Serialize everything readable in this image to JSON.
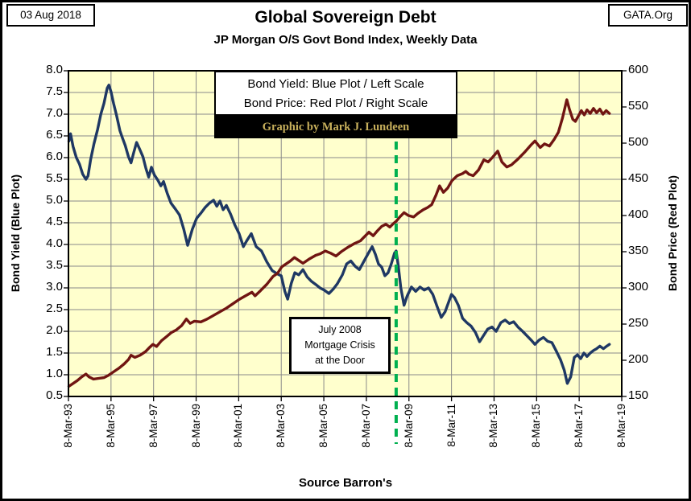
{
  "header": {
    "date_box": "03 Aug 2018",
    "org_box": "GATA.Org",
    "title": "Global Sovereign Debt",
    "subtitle": "JP Morgan O/S Govt Bond Index, Weekly Data"
  },
  "legend": {
    "line1": "Bond Yield: Blue Plot / Left Scale",
    "line2": "Bond Price: Red Plot / Right Scale",
    "credit": "Graphic by Mark J. Lundeen"
  },
  "annotation": {
    "line1": "July 2008",
    "line2": "Mortgage Crisis",
    "line3": "at the Door"
  },
  "footer": {
    "source": "Source Barron's"
  },
  "chart_data": {
    "type": "line",
    "title": "Global Sovereign Debt",
    "subtitle": "JP Morgan O/S Govt Bond Index, Weekly Data",
    "plot_bg": "#FFFFCD",
    "grid": true,
    "grid_color": "#8A8A8A",
    "x_axis": {
      "tick_labels": [
        "8-Mar-93",
        "8-Mar-95",
        "8-Mar-97",
        "8-Mar-99",
        "8-Mar-01",
        "8-Mar-03",
        "8-Mar-05",
        "8-Mar-07",
        "8-Mar-09",
        "8-Mar-11",
        "8-Mar-13",
        "8-Mar-15",
        "8-Mar-17",
        "8-Mar-19"
      ],
      "range_years": [
        1993.18,
        2019.18
      ]
    },
    "left_axis": {
      "label": "Bond Yield  (Blue Plot)",
      "ticks": [
        "8.0",
        "7.5",
        "7.0",
        "6.5",
        "6.0",
        "5.5",
        "5.0",
        "4.5",
        "4.0",
        "3.5",
        "3.0",
        "2.5",
        "2.0",
        "1.5",
        "1.0",
        "0.5"
      ],
      "range": [
        0.5,
        8.0
      ]
    },
    "right_axis": {
      "label": "Bond Price  (Red Plot)",
      "ticks": [
        "600",
        "550",
        "500",
        "450",
        "400",
        "350",
        "300",
        "250",
        "200",
        "150"
      ],
      "range": [
        150,
        600
      ]
    },
    "event_line": {
      "year": 2008.58,
      "color": "#00B050",
      "style": "dashed",
      "label": "July 2008 Mortgage Crisis at the Door"
    },
    "series": [
      {
        "name": "Bond Yield",
        "axis": "left",
        "color": "#1F3864",
        "points": [
          [
            1993.2,
            6.38
          ],
          [
            1993.28,
            6.55
          ],
          [
            1993.4,
            6.25
          ],
          [
            1993.55,
            6.0
          ],
          [
            1993.7,
            5.85
          ],
          [
            1993.85,
            5.62
          ],
          [
            1994.0,
            5.5
          ],
          [
            1994.1,
            5.58
          ],
          [
            1994.22,
            5.95
          ],
          [
            1994.38,
            6.32
          ],
          [
            1994.55,
            6.65
          ],
          [
            1994.7,
            7.0
          ],
          [
            1994.85,
            7.25
          ],
          [
            1995.0,
            7.6
          ],
          [
            1995.08,
            7.67
          ],
          [
            1995.18,
            7.52
          ],
          [
            1995.3,
            7.25
          ],
          [
            1995.45,
            6.95
          ],
          [
            1995.6,
            6.62
          ],
          [
            1995.72,
            6.45
          ],
          [
            1995.85,
            6.28
          ],
          [
            1996.0,
            6.02
          ],
          [
            1996.12,
            5.88
          ],
          [
            1996.25,
            6.12
          ],
          [
            1996.38,
            6.35
          ],
          [
            1996.52,
            6.2
          ],
          [
            1996.68,
            6.02
          ],
          [
            1996.82,
            5.75
          ],
          [
            1996.95,
            5.55
          ],
          [
            1997.08,
            5.78
          ],
          [
            1997.22,
            5.6
          ],
          [
            1997.38,
            5.48
          ],
          [
            1997.52,
            5.35
          ],
          [
            1997.65,
            5.45
          ],
          [
            1997.82,
            5.18
          ],
          [
            1998.0,
            4.95
          ],
          [
            1998.2,
            4.82
          ],
          [
            1998.4,
            4.68
          ],
          [
            1998.6,
            4.35
          ],
          [
            1998.78,
            3.98
          ],
          [
            1999.0,
            4.35
          ],
          [
            1999.2,
            4.6
          ],
          [
            1999.4,
            4.72
          ],
          [
            1999.6,
            4.85
          ],
          [
            1999.8,
            4.95
          ],
          [
            2000.0,
            5.02
          ],
          [
            2000.15,
            4.88
          ],
          [
            2000.3,
            5.0
          ],
          [
            2000.45,
            4.8
          ],
          [
            2000.6,
            4.9
          ],
          [
            2000.8,
            4.7
          ],
          [
            2001.0,
            4.45
          ],
          [
            2001.2,
            4.25
          ],
          [
            2001.4,
            3.95
          ],
          [
            2001.55,
            4.08
          ],
          [
            2001.77,
            4.25
          ],
          [
            2002.0,
            3.95
          ],
          [
            2002.25,
            3.85
          ],
          [
            2002.5,
            3.6
          ],
          [
            2002.75,
            3.4
          ],
          [
            2003.0,
            3.32
          ],
          [
            2003.18,
            3.28
          ],
          [
            2003.35,
            2.92
          ],
          [
            2003.48,
            2.74
          ],
          [
            2003.65,
            3.1
          ],
          [
            2003.82,
            3.35
          ],
          [
            2004.0,
            3.3
          ],
          [
            2004.2,
            3.42
          ],
          [
            2004.4,
            3.25
          ],
          [
            2004.6,
            3.15
          ],
          [
            2004.8,
            3.08
          ],
          [
            2005.0,
            3.0
          ],
          [
            2005.2,
            2.95
          ],
          [
            2005.42,
            2.87
          ],
          [
            2005.62,
            2.97
          ],
          [
            2005.82,
            3.1
          ],
          [
            2006.05,
            3.3
          ],
          [
            2006.25,
            3.55
          ],
          [
            2006.45,
            3.62
          ],
          [
            2006.65,
            3.5
          ],
          [
            2006.85,
            3.42
          ],
          [
            2007.05,
            3.6
          ],
          [
            2007.25,
            3.78
          ],
          [
            2007.45,
            3.95
          ],
          [
            2007.6,
            3.78
          ],
          [
            2007.75,
            3.55
          ],
          [
            2007.9,
            3.48
          ],
          [
            2008.05,
            3.28
          ],
          [
            2008.2,
            3.35
          ],
          [
            2008.35,
            3.55
          ],
          [
            2008.5,
            3.8
          ],
          [
            2008.58,
            3.85
          ],
          [
            2008.68,
            3.5
          ],
          [
            2008.8,
            3.0
          ],
          [
            2008.95,
            2.6
          ],
          [
            2009.1,
            2.82
          ],
          [
            2009.3,
            3.02
          ],
          [
            2009.5,
            2.92
          ],
          [
            2009.7,
            3.02
          ],
          [
            2009.9,
            2.95
          ],
          [
            2010.1,
            3.0
          ],
          [
            2010.3,
            2.85
          ],
          [
            2010.5,
            2.58
          ],
          [
            2010.7,
            2.32
          ],
          [
            2010.88,
            2.45
          ],
          [
            2011.05,
            2.68
          ],
          [
            2011.18,
            2.85
          ],
          [
            2011.32,
            2.78
          ],
          [
            2011.5,
            2.6
          ],
          [
            2011.7,
            2.3
          ],
          [
            2011.9,
            2.2
          ],
          [
            2012.1,
            2.12
          ],
          [
            2012.3,
            1.98
          ],
          [
            2012.5,
            1.76
          ],
          [
            2012.68,
            1.9
          ],
          [
            2012.88,
            2.05
          ],
          [
            2013.08,
            2.1
          ],
          [
            2013.28,
            2.0
          ],
          [
            2013.5,
            2.2
          ],
          [
            2013.7,
            2.26
          ],
          [
            2013.9,
            2.18
          ],
          [
            2014.1,
            2.22
          ],
          [
            2014.3,
            2.1
          ],
          [
            2014.52,
            2.0
          ],
          [
            2014.72,
            1.9
          ],
          [
            2014.92,
            1.8
          ],
          [
            2015.1,
            1.7
          ],
          [
            2015.3,
            1.8
          ],
          [
            2015.5,
            1.86
          ],
          [
            2015.7,
            1.77
          ],
          [
            2015.9,
            1.74
          ],
          [
            2016.1,
            1.55
          ],
          [
            2016.3,
            1.35
          ],
          [
            2016.48,
            1.1
          ],
          [
            2016.62,
            0.8
          ],
          [
            2016.78,
            0.95
          ],
          [
            2016.95,
            1.4
          ],
          [
            2017.1,
            1.46
          ],
          [
            2017.25,
            1.37
          ],
          [
            2017.4,
            1.5
          ],
          [
            2017.55,
            1.42
          ],
          [
            2017.7,
            1.5
          ],
          [
            2017.85,
            1.56
          ],
          [
            2018.0,
            1.6
          ],
          [
            2018.15,
            1.66
          ],
          [
            2018.32,
            1.6
          ],
          [
            2018.45,
            1.65
          ],
          [
            2018.6,
            1.7
          ]
        ]
      },
      {
        "name": "Bond Price",
        "axis": "right",
        "color": "#701512",
        "points": [
          [
            1993.2,
            164
          ],
          [
            1993.4,
            168
          ],
          [
            1993.6,
            172
          ],
          [
            1993.8,
            177
          ],
          [
            1994.0,
            181
          ],
          [
            1994.15,
            177
          ],
          [
            1994.35,
            174
          ],
          [
            1994.6,
            175
          ],
          [
            1994.85,
            176
          ],
          [
            1995.05,
            179
          ],
          [
            1995.3,
            184
          ],
          [
            1995.55,
            189
          ],
          [
            1995.8,
            195
          ],
          [
            1996.0,
            201
          ],
          [
            1996.12,
            207
          ],
          [
            1996.3,
            204
          ],
          [
            1996.55,
            207
          ],
          [
            1996.8,
            212
          ],
          [
            1997.0,
            218
          ],
          [
            1997.15,
            222
          ],
          [
            1997.32,
            219
          ],
          [
            1997.55,
            227
          ],
          [
            1997.8,
            233
          ],
          [
            1998.0,
            238
          ],
          [
            1998.25,
            242
          ],
          [
            1998.5,
            248
          ],
          [
            1998.72,
            257
          ],
          [
            1998.9,
            251
          ],
          [
            1999.1,
            254
          ],
          [
            1999.4,
            253
          ],
          [
            1999.7,
            257
          ],
          [
            2000.0,
            262
          ],
          [
            2000.3,
            267
          ],
          [
            2000.6,
            272
          ],
          [
            2000.9,
            278
          ],
          [
            2001.2,
            284
          ],
          [
            2001.5,
            289
          ],
          [
            2001.8,
            294
          ],
          [
            2001.95,
            289
          ],
          [
            2002.2,
            296
          ],
          [
            2002.5,
            305
          ],
          [
            2002.8,
            316
          ],
          [
            2003.0,
            320
          ],
          [
            2003.2,
            329
          ],
          [
            2003.4,
            333
          ],
          [
            2003.6,
            337
          ],
          [
            2003.8,
            342
          ],
          [
            2004.0,
            338
          ],
          [
            2004.2,
            334
          ],
          [
            2004.5,
            340
          ],
          [
            2004.8,
            345
          ],
          [
            2005.0,
            347
          ],
          [
            2005.25,
            351
          ],
          [
            2005.5,
            348
          ],
          [
            2005.75,
            344
          ],
          [
            2006.0,
            350
          ],
          [
            2006.3,
            356
          ],
          [
            2006.6,
            361
          ],
          [
            2006.9,
            365
          ],
          [
            2007.1,
            371
          ],
          [
            2007.3,
            377
          ],
          [
            2007.5,
            372
          ],
          [
            2007.7,
            379
          ],
          [
            2007.9,
            385
          ],
          [
            2008.1,
            388
          ],
          [
            2008.28,
            384
          ],
          [
            2008.45,
            389
          ],
          [
            2008.58,
            392
          ],
          [
            2008.75,
            398
          ],
          [
            2008.95,
            404
          ],
          [
            2009.15,
            400
          ],
          [
            2009.4,
            398
          ],
          [
            2009.6,
            403
          ],
          [
            2009.85,
            408
          ],
          [
            2010.05,
            411
          ],
          [
            2010.25,
            415
          ],
          [
            2010.45,
            428
          ],
          [
            2010.62,
            441
          ],
          [
            2010.8,
            432
          ],
          [
            2011.0,
            438
          ],
          [
            2011.2,
            448
          ],
          [
            2011.45,
            455
          ],
          [
            2011.7,
            458
          ],
          [
            2011.85,
            461
          ],
          [
            2012.0,
            457
          ],
          [
            2012.2,
            455
          ],
          [
            2012.45,
            463
          ],
          [
            2012.7,
            477
          ],
          [
            2012.9,
            474
          ],
          [
            2013.1,
            480
          ],
          [
            2013.35,
            489
          ],
          [
            2013.55,
            474
          ],
          [
            2013.78,
            467
          ],
          [
            2014.0,
            470
          ],
          [
            2014.3,
            478
          ],
          [
            2014.6,
            487
          ],
          [
            2014.9,
            497
          ],
          [
            2015.1,
            503
          ],
          [
            2015.35,
            494
          ],
          [
            2015.55,
            499
          ],
          [
            2015.78,
            496
          ],
          [
            2016.0,
            505
          ],
          [
            2016.2,
            515
          ],
          [
            2016.4,
            535
          ],
          [
            2016.6,
            560
          ],
          [
            2016.72,
            547
          ],
          [
            2016.88,
            533
          ],
          [
            2017.0,
            530
          ],
          [
            2017.15,
            538
          ],
          [
            2017.28,
            545
          ],
          [
            2017.42,
            539
          ],
          [
            2017.55,
            546
          ],
          [
            2017.7,
            541
          ],
          [
            2017.85,
            548
          ],
          [
            2018.0,
            542
          ],
          [
            2018.15,
            547
          ],
          [
            2018.3,
            540
          ],
          [
            2018.45,
            545
          ],
          [
            2018.6,
            541
          ]
        ]
      }
    ]
  }
}
